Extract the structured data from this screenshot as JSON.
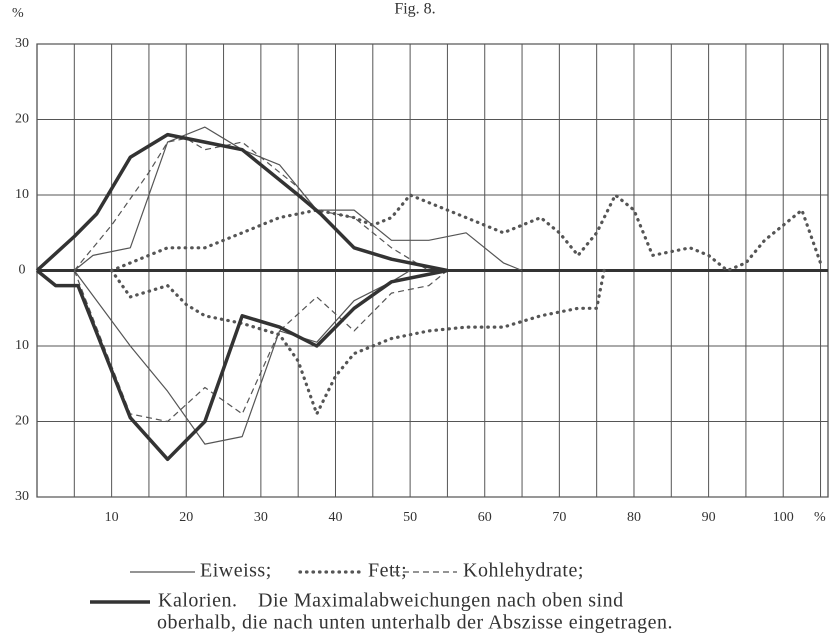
{
  "chart_data": {
    "type": "line",
    "title": "Fig. 8.",
    "y_label": "%",
    "x_label": "%",
    "xlim": [
      0,
      106
    ],
    "ylim": [
      -30,
      30
    ],
    "xticks": [
      10,
      20,
      30,
      40,
      50,
      60,
      70,
      80,
      90,
      100
    ],
    "xminor": [
      5,
      15,
      25,
      35,
      45,
      55,
      65,
      75,
      85,
      95,
      105
    ],
    "yticks": [
      30,
      20,
      10,
      0,
      {
        "value": -10,
        "label": "10"
      },
      {
        "value": -20,
        "label": "20"
      },
      {
        "value": -30,
        "label": "30"
      }
    ],
    "grid": true,
    "series": [
      {
        "name": "Eiweiss;",
        "color": "#555555",
        "style": "solid",
        "upper": {
          "x": [
            5,
            7.5,
            12.5,
            17.5,
            22.5,
            27.5,
            32.5,
            37.5,
            42.5,
            47.5,
            52.5,
            57.5,
            62.5,
            65
          ],
          "values": [
            0,
            2,
            3,
            17,
            19,
            16,
            14,
            8,
            8,
            4,
            4,
            5,
            1,
            0
          ]
        },
        "lower": {
          "x": [
            5,
            12.5,
            17.5,
            22.5,
            27.5,
            32.5,
            37.5,
            42.5,
            47.5,
            50
          ],
          "values": [
            0,
            -10,
            -16,
            -23,
            -22,
            -8,
            -9.5,
            -4,
            -1.5,
            0
          ]
        }
      },
      {
        "name": "Fett;",
        "color": "#555555",
        "style": "dotted",
        "upper": {
          "x": [
            10,
            12.5,
            17.5,
            22.5,
            27.5,
            32.5,
            37.5,
            42.5,
            45,
            47.5,
            50,
            52.5,
            57.5,
            62.5,
            65,
            67.5,
            70,
            72.5,
            75,
            77.5,
            80,
            82.5,
            87.5,
            90,
            92.5,
            95,
            97.5,
            102.5,
            105
          ],
          "values": [
            0,
            1,
            3,
            3,
            5,
            7,
            8,
            7,
            6,
            7,
            10,
            9,
            7,
            5,
            6,
            7,
            5,
            2,
            5,
            10,
            8,
            2,
            3,
            2,
            0,
            1,
            4,
            8,
            1
          ]
        },
        "lower": {
          "x": [
            10,
            12.5,
            17.5,
            20,
            22.5,
            27.5,
            32.5,
            35,
            37.5,
            40,
            42.5,
            47.5,
            52.5,
            57.5,
            62.5,
            67.5,
            72.5,
            75,
            76
          ],
          "values": [
            0,
            -3.5,
            -2,
            -4.5,
            -6,
            -7,
            -8.5,
            -12,
            -19,
            -14,
            -11,
            -9,
            -8,
            -7.5,
            -7.5,
            -6,
            -5,
            -5,
            0
          ]
        }
      },
      {
        "name": "Kohlehydrate;",
        "color": "#555555",
        "style": "dashed",
        "upper": {
          "x": [
            5,
            10,
            15,
            17.5,
            20,
            22.5,
            27.5,
            30,
            35,
            37.5,
            42.5,
            47.5,
            52.5
          ],
          "values": [
            0,
            6,
            13,
            17,
            17.5,
            16,
            17,
            15,
            11,
            8,
            7,
            3,
            0
          ]
        },
        "lower": {
          "x": [
            5,
            12.5,
            17.5,
            22.5,
            27.5,
            32.5,
            37.5,
            42.5,
            47.5,
            52.5,
            55
          ],
          "values": [
            0,
            -19,
            -20,
            -15.5,
            -19,
            -8,
            -3.5,
            -8,
            -3,
            -2,
            0
          ]
        }
      },
      {
        "name": "Kalorien.",
        "color": "#333333",
        "style": "thick",
        "upper": {
          "x": [
            0,
            5,
            8,
            12.5,
            17.5,
            22.5,
            27.5,
            30,
            35,
            38,
            42.5,
            47.5,
            55
          ],
          "values": [
            0,
            4.5,
            7.5,
            15,
            18,
            17,
            16,
            14,
            10,
            7.5,
            3,
            1.5,
            0
          ]
        },
        "lower": {
          "x": [
            0,
            2.5,
            5.5,
            12.5,
            17.5,
            22.5,
            27.5,
            32.5,
            37.5,
            42.5,
            47.5,
            55
          ],
          "values": [
            0,
            -2,
            -2,
            -19.5,
            -25,
            -20,
            -6,
            -7.5,
            -10,
            -5,
            -1.5,
            0
          ]
        }
      }
    ],
    "caption": [
      "Die Maximalabweichungen nach oben sind",
      "oberhalb, die nach unten unterhalb der Abszisse eingetragen."
    ]
  }
}
